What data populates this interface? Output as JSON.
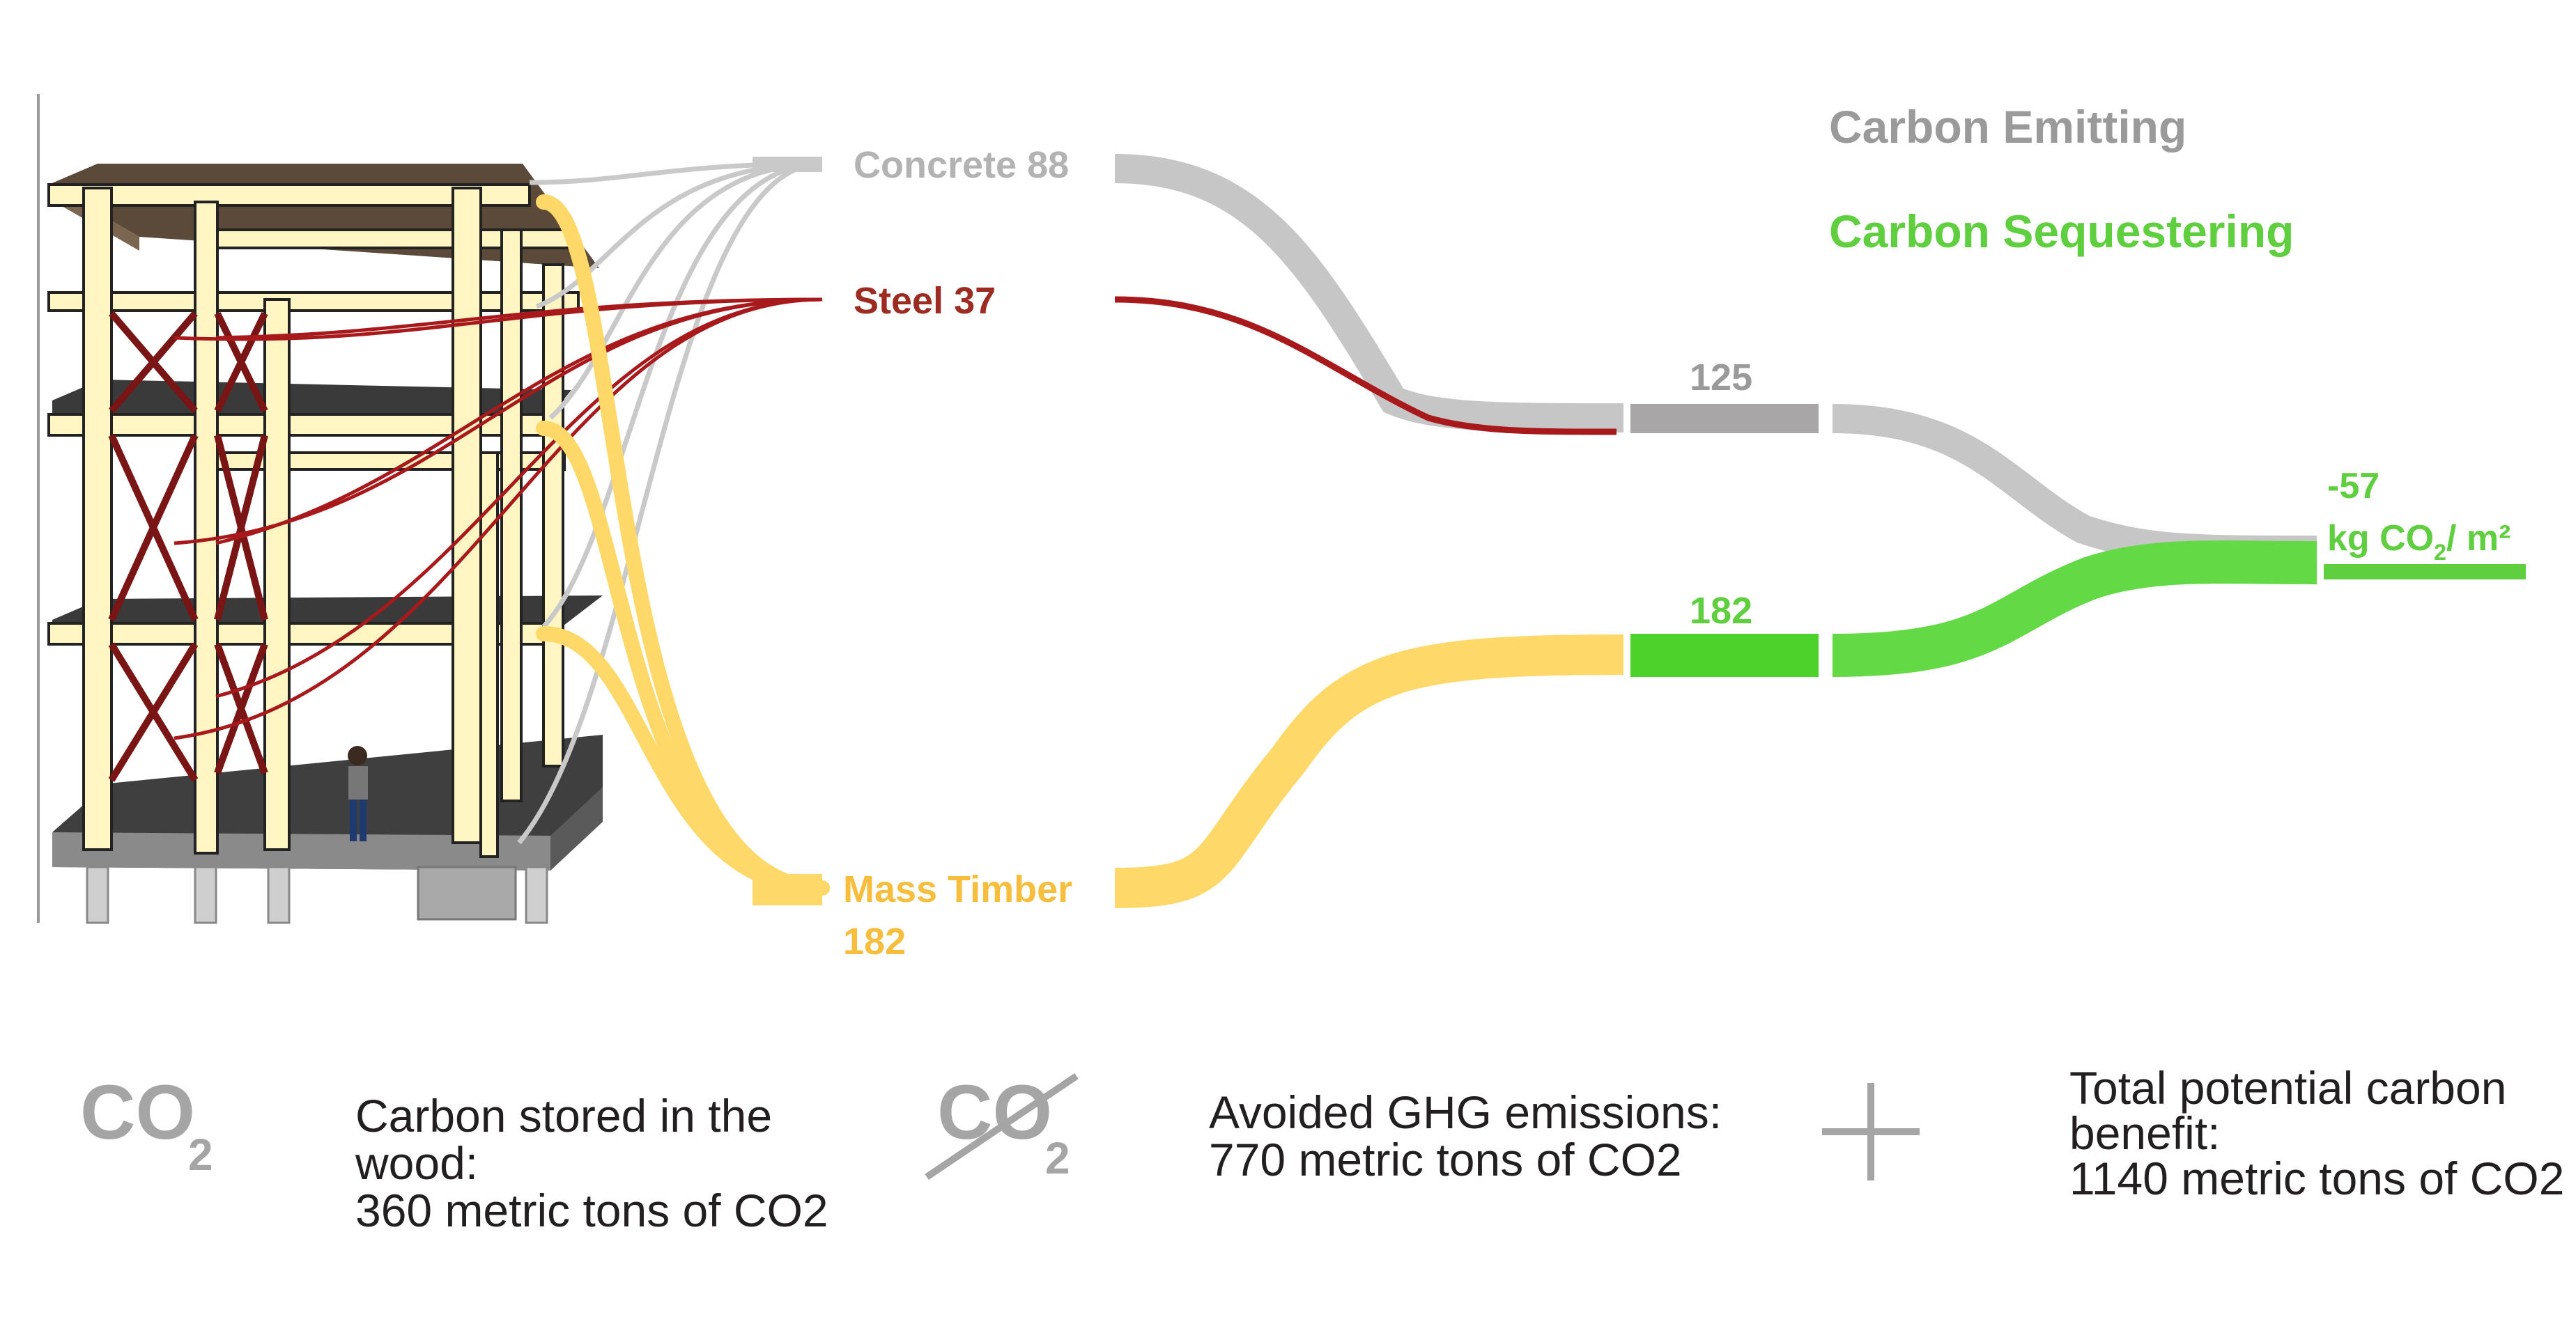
{
  "colors": {
    "concrete": "#c3c3c3",
    "steel": "#a8191c",
    "timber": "#fed96a",
    "emitting": "#9a9a9a",
    "sequestering": "#5fcf3f",
    "sequestering_bar": "#4cd22a",
    "grey_bar": "#a8a6a6",
    "text_dark": "#231f20",
    "steel_text": "#9c2b22",
    "timber_text": "#f7be3d"
  },
  "legend": {
    "emitting": "Carbon Emitting",
    "sequestering": "Carbon Sequestering"
  },
  "nodes": {
    "concrete": "Concrete 88",
    "steel": "Steel 37",
    "timber_line1": "Mass Timber",
    "timber_line2": "182",
    "emit_total": "125",
    "seq_total": "182",
    "net_value": "-57",
    "net_unit_prefix": "kg CO",
    "net_unit_sub": "2",
    "net_unit_suffix": "/ m²"
  },
  "footer": {
    "co2_icon_main": "CO",
    "co2_icon_sub": "2",
    "stored_line1": "Carbon stored in the",
    "stored_line2": "wood:",
    "stored_line3": "360 metric tons of CO2",
    "avoided_icon_main": "CO",
    "avoided_icon_sub": "2",
    "avoided_line1": "Avoided GHG emissions:",
    "avoided_line2": "770 metric tons of CO2",
    "total_line1": "Total potential carbon",
    "total_line2": "benefit:",
    "total_line3": "1140 metric tons of CO2"
  },
  "icons": [
    "building-illustration",
    "person-figure",
    "co2-icon",
    "avoided-co2-icon",
    "plus-icon"
  ]
}
